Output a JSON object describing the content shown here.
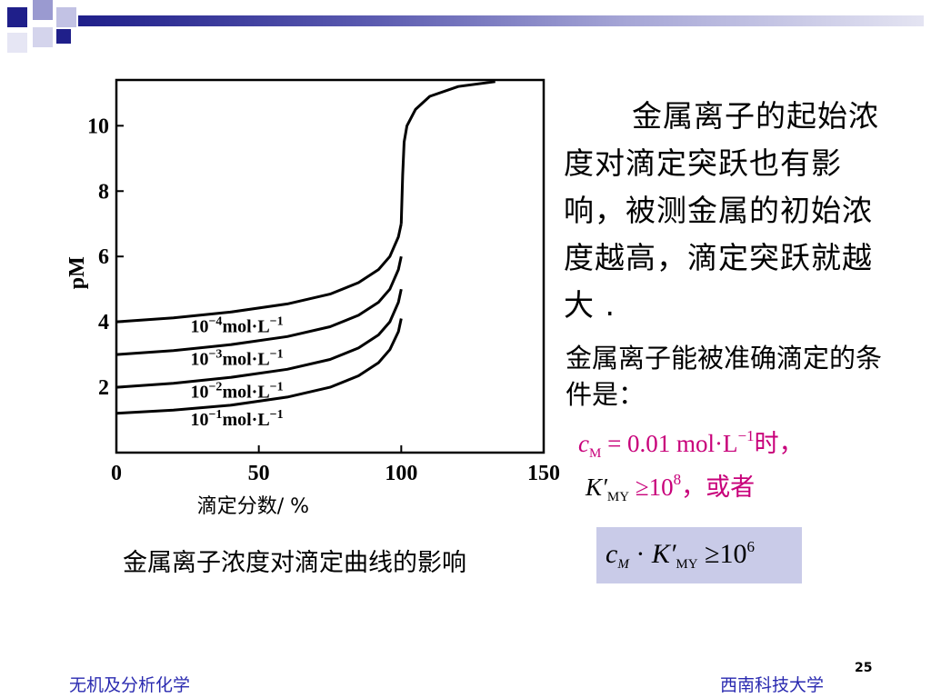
{
  "paragraph": "金属离子的起始浓度对滴定突跃也有影响，被测金属的初始浓度越高，滴定突跃就越大 .",
  "condition": {
    "title": "金属离子能被准确滴定的条件是：",
    "line1": {
      "c": "c",
      "c_sub": "M",
      "rest": " = 0.01 mol·L",
      "exp": "−1",
      "tail": "时，"
    },
    "line2": {
      "k": "K′",
      "k_sub": "MY",
      "geq": " ≥10",
      "exp": "8",
      "tail": "，或者"
    }
  },
  "caption": "金属离子浓度对滴定曲线的影响",
  "formula": {
    "c": "c",
    "c_sub": "M",
    "dot": " · ",
    "k": "K′",
    "k_sub": "MY",
    "geq": " ≥10",
    "exp": "6"
  },
  "footer": {
    "left": "无机及分析化学",
    "right": "西南科技大学",
    "page": "25"
  },
  "chart_data": {
    "type": "line",
    "xlabel": "滴定分数/ %",
    "ylabel": "pM",
    "xlim": [
      0,
      150
    ],
    "ylim": [
      0,
      11.4
    ],
    "xticks": [
      "0",
      "50",
      "100",
      "150"
    ],
    "yticks": [
      "2",
      "4",
      "6",
      "8",
      "10"
    ],
    "series": [
      {
        "name": "10⁻⁴mol·L⁻¹",
        "label": {
          "base": "10",
          "exp": "−4",
          "unit": "mol·L",
          "uexp": "−1"
        },
        "points": [
          [
            0,
            4.0
          ],
          [
            20,
            4.12
          ],
          [
            40,
            4.3
          ],
          [
            60,
            4.55
          ],
          [
            75,
            4.85
          ],
          [
            85,
            5.2
          ],
          [
            92,
            5.6
          ],
          [
            96,
            6.0
          ],
          [
            99,
            6.6
          ],
          [
            100,
            7.0
          ]
        ]
      },
      {
        "name": "10⁻³mol·L⁻¹",
        "label": {
          "base": "10",
          "exp": "−3",
          "unit": "mol·L",
          "uexp": "−1"
        },
        "points": [
          [
            0,
            3.0
          ],
          [
            20,
            3.12
          ],
          [
            40,
            3.3
          ],
          [
            60,
            3.55
          ],
          [
            75,
            3.85
          ],
          [
            85,
            4.2
          ],
          [
            92,
            4.6
          ],
          [
            96,
            5.0
          ],
          [
            99,
            5.6
          ],
          [
            100,
            6.0
          ]
        ]
      },
      {
        "name": "10⁻²mol·L⁻¹",
        "label": {
          "base": "10",
          "exp": "−2",
          "unit": "mol·L",
          "uexp": "−1"
        },
        "points": [
          [
            0,
            2.0
          ],
          [
            20,
            2.12
          ],
          [
            40,
            2.3
          ],
          [
            60,
            2.55
          ],
          [
            75,
            2.85
          ],
          [
            85,
            3.2
          ],
          [
            92,
            3.6
          ],
          [
            96,
            4.0
          ],
          [
            99,
            4.6
          ],
          [
            100,
            5.0
          ]
        ]
      },
      {
        "name": "10⁻¹mol·L⁻¹",
        "label": {
          "base": "10",
          "exp": "−1",
          "unit": "mol·L",
          "uexp": "−1"
        },
        "points": [
          [
            0,
            1.2
          ],
          [
            20,
            1.3
          ],
          [
            40,
            1.45
          ],
          [
            60,
            1.7
          ],
          [
            75,
            2.0
          ],
          [
            85,
            2.35
          ],
          [
            92,
            2.75
          ],
          [
            96,
            3.15
          ],
          [
            99,
            3.7
          ],
          [
            100,
            4.1
          ]
        ]
      },
      {
        "name": "common",
        "points": [
          [
            100,
            7.0
          ],
          [
            100.5,
            8.5
          ],
          [
            101,
            9.5
          ],
          [
            102,
            10.0
          ],
          [
            105,
            10.5
          ],
          [
            110,
            10.9
          ],
          [
            120,
            11.2
          ],
          [
            133,
            11.35
          ]
        ]
      }
    ],
    "grid": false
  }
}
